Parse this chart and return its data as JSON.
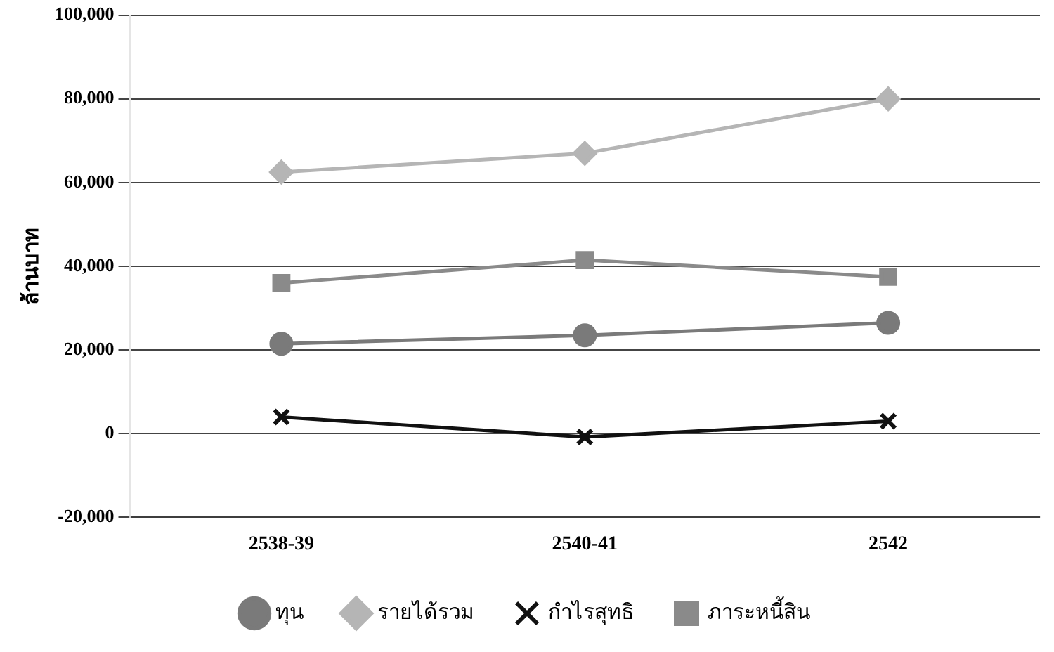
{
  "chart_data": {
    "type": "line",
    "ylabel": "ล้านบาท",
    "categories": [
      "2538-39",
      "2540-41",
      "2542"
    ],
    "series": [
      {
        "name": "ทุน",
        "color": "#7a7a7a",
        "marker": "circle",
        "values": [
          21500,
          23500,
          26500
        ]
      },
      {
        "name": "รายได้รวม",
        "color": "#b5b5b5",
        "marker": "diamond",
        "values": [
          62500,
          67000,
          80000
        ]
      },
      {
        "name": "กำไรสุทธิ",
        "color": "#111111",
        "marker": "cross",
        "values": [
          4000,
          -800,
          3000
        ]
      },
      {
        "name": "ภาระหนี้สิน",
        "color": "#8a8a8a",
        "marker": "square",
        "values": [
          36000,
          41500,
          37500
        ]
      }
    ],
    "ylim": [
      -20000,
      100000
    ],
    "yticks": [
      {
        "value": -20000,
        "label": "-20,000"
      },
      0,
      {
        "value": 20000,
        "label": "20,000"
      },
      {
        "value": 40000,
        "label": "40,000"
      },
      {
        "value": 60000,
        "label": "60,000"
      },
      {
        "value": 80000,
        "label": "80,000"
      },
      {
        "value": 100000,
        "label": "100,000"
      }
    ],
    "grid": "y",
    "legend": "bottom"
  }
}
